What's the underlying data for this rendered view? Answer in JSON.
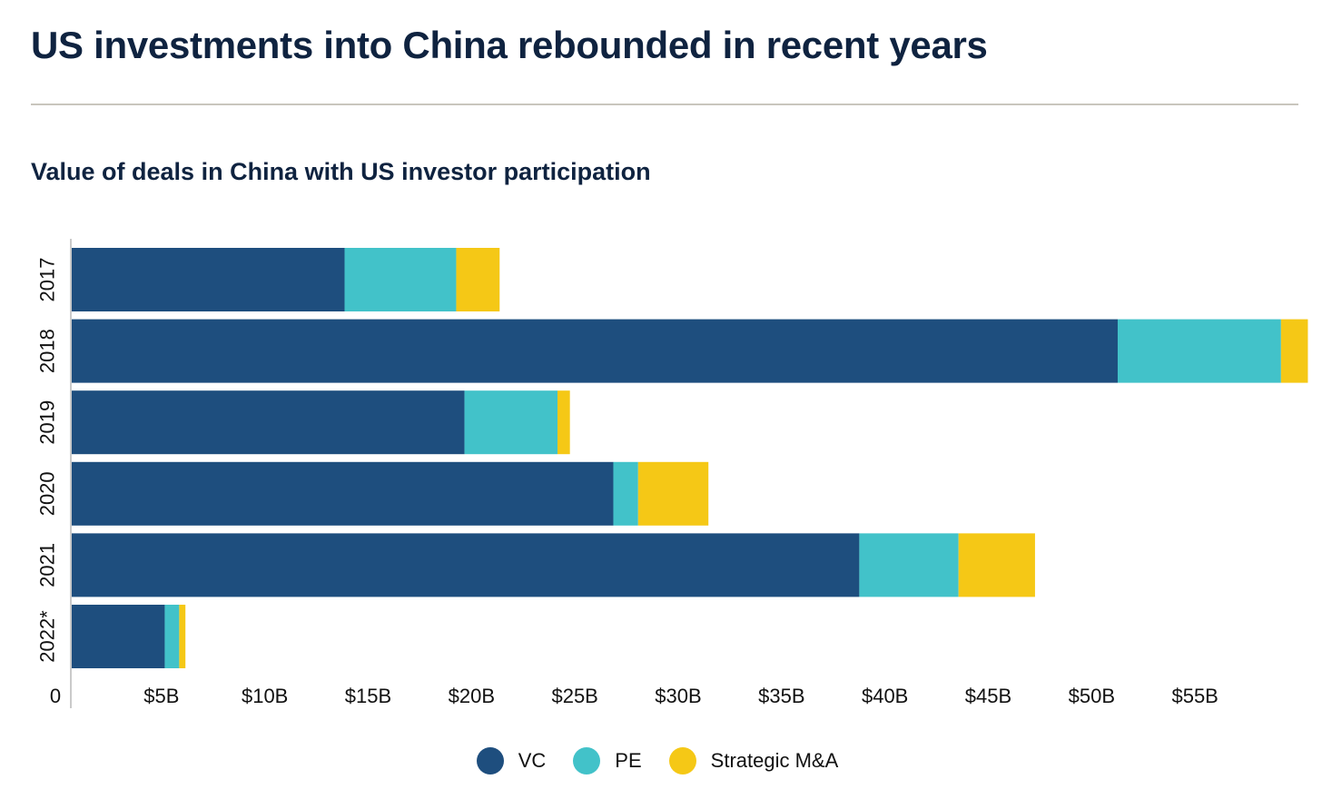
{
  "title": "US investments into China rebounded in recent years",
  "subtitle": "Value of deals in China with US investor participation",
  "colors": {
    "VC": "#1e4e7e",
    "PE": "#42c2c9",
    "Strategic M&A": "#f5c816",
    "axis": "#b8b8b8",
    "text": "#111111"
  },
  "chart_data": {
    "type": "bar",
    "orientation": "horizontal",
    "stacked": true,
    "categories": [
      "2017",
      "2018",
      "2019",
      "2020",
      "2021",
      "2022*"
    ],
    "series": [
      {
        "name": "VC",
        "values": [
          13.2,
          50.6,
          19.0,
          26.2,
          38.1,
          4.5
        ]
      },
      {
        "name": "PE",
        "values": [
          5.4,
          7.9,
          4.5,
          1.2,
          4.8,
          0.7
        ]
      },
      {
        "name": "Strategic M&A",
        "values": [
          2.1,
          1.3,
          0.6,
          3.4,
          3.7,
          0.3
        ]
      }
    ],
    "xlim": [
      0,
      60
    ],
    "x_ticks": [
      0,
      5,
      10,
      15,
      20,
      25,
      30,
      35,
      40,
      45,
      50,
      55
    ],
    "x_tick_labels": [
      "0",
      "$5B",
      "$10B",
      "$15B",
      "$20B",
      "$25B",
      "$30B",
      "$35B",
      "$40B",
      "$45B",
      "$50B",
      "$55B"
    ],
    "legend_position": "bottom-center",
    "grid": false
  }
}
